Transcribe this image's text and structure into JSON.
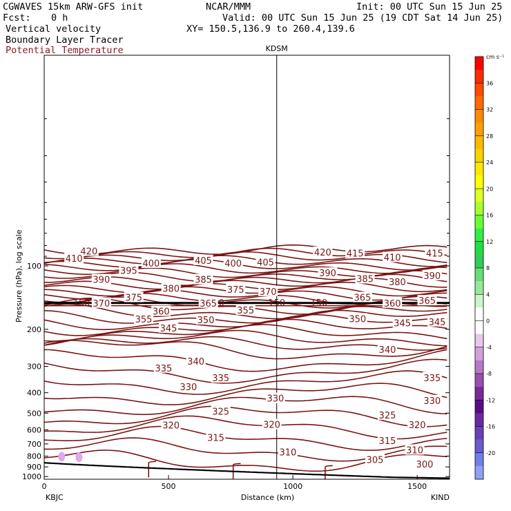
{
  "header": {
    "model": "CGWAVES 15km ARW-GFS init",
    "org": "NCAR/MMM",
    "init": "Init: 00 UTC Sun 15 Jun 25",
    "fcst_label": "Fcst:",
    "fcst_value": "0 h",
    "valid": "Valid: 00 UTC Sun 15 Jun 25 (19 CDT Sat 14 Jun 25)",
    "field1": "Vertical velocity",
    "xy": "XY= 150.5,136.9 to 260.4,139.6",
    "field2": "Boundary Layer Tracer",
    "field3": "Potential Temperature"
  },
  "chart_data": {
    "type": "contour-cross-section",
    "marker_label": "KDSM",
    "marker_x_km": 935,
    "xlabel": "Distance (km)",
    "ylabel": "Pressure (hPa), log scale",
    "xlim": [
      0,
      1630
    ],
    "ylim_hpa": [
      1030,
      10
    ],
    "x_ticks": [
      0,
      500,
      1000,
      1500
    ],
    "x_tick_labels": [
      "0",
      "500",
      "1000",
      "1500"
    ],
    "y_ticks": [
      100,
      200,
      300,
      400,
      500,
      600,
      700,
      800,
      900,
      1000
    ],
    "y_tick_labels": [
      "100",
      "200",
      "300",
      "400",
      "500",
      "600",
      "700",
      "800",
      "900",
      "1000"
    ],
    "x_end_labels": {
      "left": "KBJC",
      "right": "KIND"
    },
    "colorbar": {
      "units": "cm s⁻¹",
      "tick_labels": [
        "36",
        "32",
        "28",
        "24",
        "20",
        "16",
        "12",
        "8",
        "4",
        "0",
        "-4",
        "-8",
        "-12",
        "-16",
        "-20"
      ],
      "colors": [
        "#ff0000",
        "#ff2a00",
        "#ff4a00",
        "#ff6a00",
        "#ff8a00",
        "#ffa000",
        "#ffb800",
        "#ffd000",
        "#ffe800",
        "#ffff00",
        "#e0ff20",
        "#a8ff30",
        "#66ff33",
        "#33ee44",
        "#22dd44",
        "#33cc55",
        "#66dd77",
        "#99e899",
        "#ccf5cc",
        "#ffffff",
        "#ffffff",
        "#e8c8ec",
        "#d4a0dc",
        "#b878c8",
        "#9a50b0",
        "#7a2a98",
        "#5c0a84",
        "#6a2aa0",
        "#6a40b8",
        "#6a5ad0",
        "#7080e8",
        "#90a0f8"
      ]
    },
    "theta_labels": [
      {
        "v": "420",
        "x": 180,
        "p": 85
      },
      {
        "v": "410",
        "x": 120,
        "p": 92
      },
      {
        "v": "405",
        "x": 640,
        "p": 94
      },
      {
        "v": "400",
        "x": 430,
        "p": 97
      },
      {
        "v": "405",
        "x": 890,
        "p": 96
      },
      {
        "v": "400",
        "x": 760,
        "p": 97
      },
      {
        "v": "420",
        "x": 1120,
        "p": 86
      },
      {
        "v": "415",
        "x": 1250,
        "p": 87
      },
      {
        "v": "410",
        "x": 1400,
        "p": 91
      },
      {
        "v": "415",
        "x": 1570,
        "p": 87
      },
      {
        "v": "395",
        "x": 340,
        "p": 105
      },
      {
        "v": "390",
        "x": 230,
        "p": 116
      },
      {
        "v": "385",
        "x": 640,
        "p": 116
      },
      {
        "v": "380",
        "x": 510,
        "p": 128
      },
      {
        "v": "375",
        "x": 770,
        "p": 129
      },
      {
        "v": "370",
        "x": 900,
        "p": 132
      },
      {
        "v": "390",
        "x": 1140,
        "p": 108
      },
      {
        "v": "385",
        "x": 1290,
        "p": 115
      },
      {
        "v": "380",
        "x": 1420,
        "p": 119
      },
      {
        "v": "390",
        "x": 1560,
        "p": 111
      },
      {
        "v": "375",
        "x": 360,
        "p": 141
      },
      {
        "v": "370",
        "x": 230,
        "p": 150
      },
      {
        "v": "360",
        "x": 470,
        "p": 164
      },
      {
        "v": "365",
        "x": 660,
        "p": 150
      },
      {
        "v": "355",
        "x": 810,
        "p": 162
      },
      {
        "v": "355",
        "x": 400,
        "p": 179
      },
      {
        "v": "350",
        "x": 650,
        "p": 180
      },
      {
        "v": "365",
        "x": 1280,
        "p": 141
      },
      {
        "v": "360",
        "x": 1400,
        "p": 150
      },
      {
        "v": "365",
        "x": 1540,
        "p": 146
      },
      {
        "v": "350",
        "x": 1260,
        "p": 178
      },
      {
        "v": "345",
        "x": 1440,
        "p": 186
      },
      {
        "v": "345",
        "x": 1580,
        "p": 184
      },
      {
        "v": "345",
        "x": 500,
        "p": 197
      },
      {
        "v": "340",
        "x": 1380,
        "p": 249
      },
      {
        "v": "340",
        "x": 610,
        "p": 283
      },
      {
        "v": "335",
        "x": 480,
        "p": 305
      },
      {
        "v": "335",
        "x": 710,
        "p": 340
      },
      {
        "v": "335",
        "x": 1560,
        "p": 339
      },
      {
        "v": "330",
        "x": 580,
        "p": 375
      },
      {
        "v": "330",
        "x": 930,
        "p": 425
      },
      {
        "v": "330",
        "x": 1560,
        "p": 435
      },
      {
        "v": "325",
        "x": 710,
        "p": 490
      },
      {
        "v": "325",
        "x": 1380,
        "p": 510
      },
      {
        "v": "320",
        "x": 510,
        "p": 570
      },
      {
        "v": "320",
        "x": 915,
        "p": 566
      },
      {
        "v": "320",
        "x": 1500,
        "p": 568
      },
      {
        "v": "315",
        "x": 690,
        "p": 652
      },
      {
        "v": "315",
        "x": 1380,
        "p": 675
      },
      {
        "v": "310",
        "x": 980,
        "p": 764
      },
      {
        "v": "310",
        "x": 1490,
        "p": 747
      },
      {
        "v": "305",
        "x": 1330,
        "p": 830
      },
      {
        "v": "300",
        "x": 1530,
        "p": 874
      }
    ],
    "tracer_marks": [
      {
        "x": 70,
        "p": 805
      },
      {
        "x": 140,
        "p": 810
      }
    ],
    "tropopause_note": "150"
  }
}
